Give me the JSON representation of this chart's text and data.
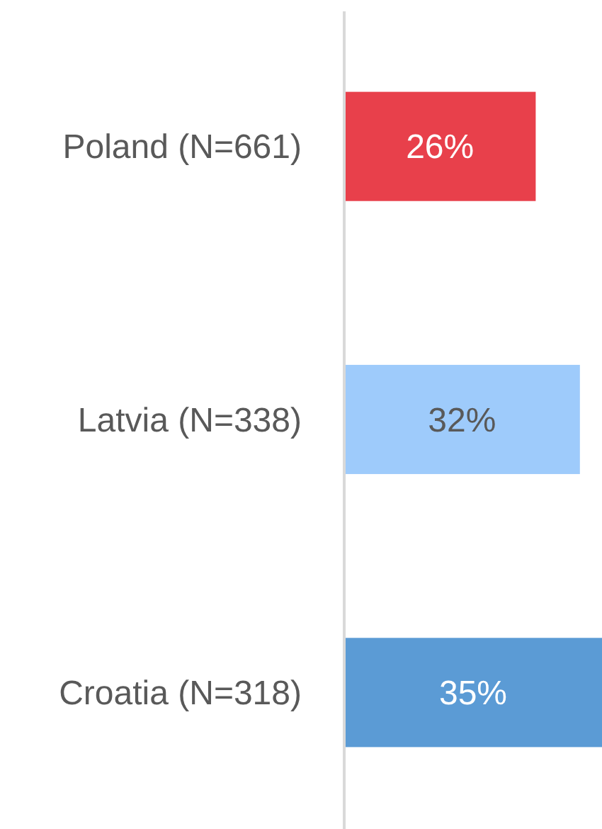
{
  "chart_data": {
    "type": "bar",
    "orientation": "horizontal",
    "categories": [
      "Poland (N=661)",
      "Latvia (N=338)",
      "Croatia (N=318)"
    ],
    "values": [
      26,
      32,
      35
    ],
    "colors": [
      "#e8404b",
      "#9ecbfb",
      "#5b9bd5"
    ],
    "value_labels": [
      "26%",
      "32%",
      "35%"
    ]
  }
}
